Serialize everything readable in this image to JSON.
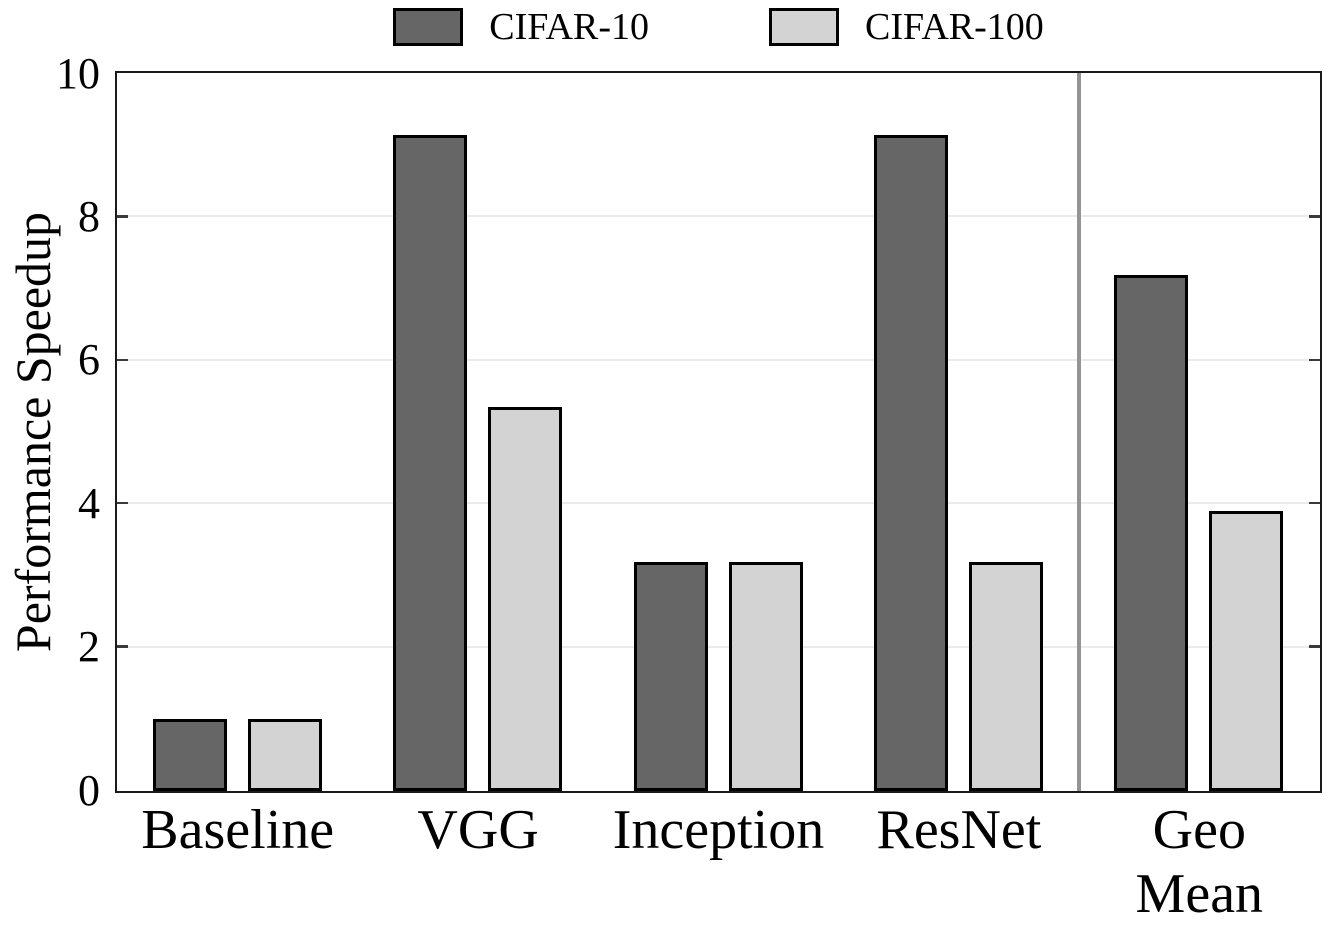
{
  "chart_data": {
    "type": "bar",
    "title": "",
    "xlabel": "",
    "ylabel": "Performance Speedup",
    "categories": [
      "Baseline",
      "VGG",
      "Inception",
      "ResNet",
      "Geo\nMean"
    ],
    "series": [
      {
        "name": "CIFAR-10",
        "color": "#666666",
        "values": [
          1.0,
          9.15,
          3.2,
          9.15,
          7.2
        ]
      },
      {
        "name": "CIFAR-100",
        "color": "#d3d3d3",
        "values": [
          1.0,
          5.35,
          3.2,
          3.2,
          3.9
        ]
      }
    ],
    "ylim": [
      0,
      10
    ],
    "yticks": [
      0,
      2,
      4,
      6,
      8,
      10
    ],
    "grid": true,
    "legend_position": "top-center",
    "separator_after_category": "ResNet",
    "colors": {
      "bar_edge": "#000000",
      "separator": "#949494",
      "gridline": "#ebebeb",
      "frame": "#1a1a1a",
      "tick": "#3a3a3a",
      "text": "#000000",
      "background": "#ffffff"
    }
  }
}
